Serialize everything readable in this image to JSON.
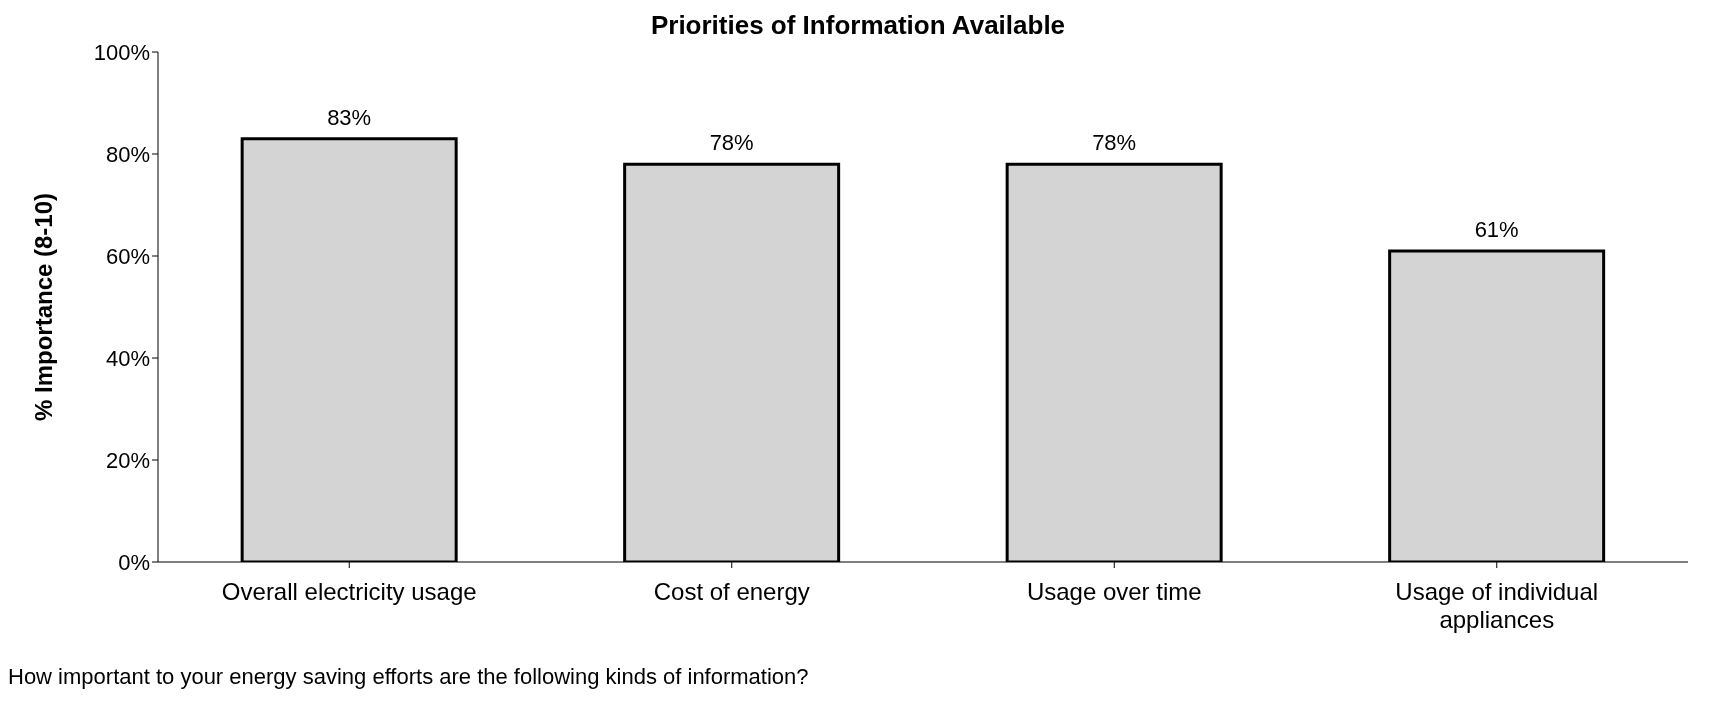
{
  "chart_data": {
    "type": "bar",
    "title": "Priorities of Information Available",
    "ylabel": "% Importance (8-10)",
    "categories": [
      "Overall electricity usage",
      "Cost of energy",
      "Usage over time",
      "Usage of individual appliances"
    ],
    "values": [
      83,
      78,
      78,
      61
    ],
    "value_labels": [
      "83%",
      "78%",
      "78%",
      "61%"
    ],
    "color": "#d4d4d4",
    "ylim": [
      0,
      100
    ],
    "yticks": [
      {
        "value": 0,
        "label": "0%"
      },
      {
        "value": 20,
        "label": "20%"
      },
      {
        "value": 40,
        "label": "40%"
      },
      {
        "value": 60,
        "label": "60%"
      },
      {
        "value": 80,
        "label": "80%"
      },
      {
        "value": 100,
        "label": "100%"
      }
    ],
    "grid": false,
    "legend": false,
    "annotations": [
      "How important to your energy saving efforts are the following kinds of information?"
    ]
  }
}
